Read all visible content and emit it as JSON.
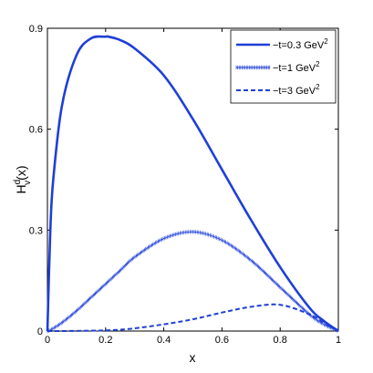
{
  "chart_data": {
    "type": "line",
    "xlabel": "x",
    "ylabel": "H",
    "ylabel_sup": "d",
    "ylabel_sub": "v",
    "ylabel_arg": "(x)",
    "xlim": [
      0,
      1
    ],
    "ylim": [
      0,
      0.9
    ],
    "xticks": [
      0,
      0.2,
      0.4,
      0.6,
      0.8,
      1
    ],
    "xtick_labels": [
      "0",
      "0.2",
      "0.4",
      "0.6",
      "0.8",
      "1"
    ],
    "yticks": [
      0,
      0.3,
      0.6,
      0.9
    ],
    "ytick_labels": [
      "0",
      "0.3",
      "0.6",
      "0.9"
    ],
    "grid": false,
    "legend_position": "top-right",
    "color": "#1f3fd6",
    "x": [
      0,
      0.01,
      0.02,
      0.05,
      0.1,
      0.15,
      0.2,
      0.21,
      0.25,
      0.3,
      0.4,
      0.5,
      0.6,
      0.7,
      0.8,
      0.9,
      0.95,
      1
    ],
    "series": [
      {
        "legend": "−t=0.3 GeV",
        "legend_sup": "2",
        "style": "solid-thick",
        "values": [
          0,
          0.3,
          0.45,
          0.67,
          0.82,
          0.87,
          0.875,
          0.875,
          0.865,
          0.84,
          0.76,
          0.63,
          0.48,
          0.33,
          0.19,
          0.07,
          0.03,
          0
        ]
      },
      {
        "legend": "−t=1 GeV",
        "legend_sup": "2",
        "style": "solid-thin-markers",
        "values": [
          0,
          0.003,
          0.008,
          0.025,
          0.06,
          0.1,
          0.14,
          0.148,
          0.18,
          0.22,
          0.275,
          0.295,
          0.27,
          0.21,
          0.13,
          0.05,
          0.02,
          0
        ]
      },
      {
        "legend": "−t=3 GeV",
        "legend_sup": "2",
        "style": "dashed",
        "values": [
          0,
          0,
          0,
          0,
          0.0005,
          0.001,
          0.002,
          0.0025,
          0.004,
          0.008,
          0.02,
          0.035,
          0.055,
          0.072,
          0.078,
          0.05,
          0.025,
          0
        ]
      }
    ]
  }
}
